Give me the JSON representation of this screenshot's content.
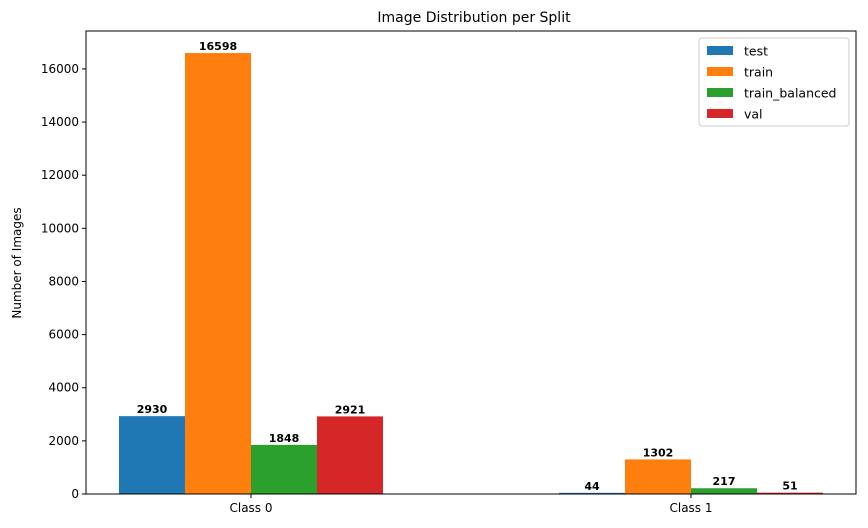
{
  "chart_data": {
    "type": "bar",
    "title": "Image Distribution per Split",
    "xlabel": "",
    "ylabel": "Number of Images",
    "categories": [
      "Class 0",
      "Class 1"
    ],
    "series": [
      {
        "name": "test",
        "color": "#1f77b4",
        "values": [
          2930,
          44
        ]
      },
      {
        "name": "train",
        "color": "#ff7f0e",
        "values": [
          16598,
          1302
        ]
      },
      {
        "name": "train_balanced",
        "color": "#2ca02c",
        "values": [
          1848,
          217
        ]
      },
      {
        "name": "val",
        "color": "#d62728",
        "values": [
          2921,
          51
        ]
      }
    ],
    "ylim": [
      0,
      17428
    ],
    "yticks": [
      0,
      2000,
      4000,
      6000,
      8000,
      10000,
      12000,
      14000,
      16000
    ],
    "grid": false,
    "legend_position": "top-right"
  }
}
